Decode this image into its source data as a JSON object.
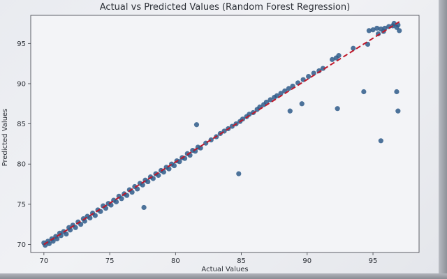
{
  "chart_data": {
    "type": "scatter",
    "title": "Actual vs Predicted Values (Random Forest Regression)",
    "xlabel": "Actual Values",
    "ylabel": "Predicted Values",
    "xlim": [
      69.0,
      98.5
    ],
    "ylim": [
      69.0,
      98.5
    ],
    "xticks": [
      70,
      75,
      80,
      85,
      90,
      95
    ],
    "yticks": [
      70,
      75,
      80,
      85,
      90,
      95
    ],
    "grid": false,
    "colors": {
      "points": "#2e5b8a",
      "reference_line": "#c0182a"
    },
    "reference_line": {
      "from": [
        70,
        70
      ],
      "to": [
        97,
        97.7
      ],
      "style": "dashed"
    },
    "outliers": [
      {
        "x": 94.3,
        "y": 89.0
      },
      {
        "x": 96.8,
        "y": 89.0
      },
      {
        "x": 96.9,
        "y": 86.6
      },
      {
        "x": 95.6,
        "y": 82.9
      },
      {
        "x": 92.3,
        "y": 86.9
      },
      {
        "x": 84.8,
        "y": 78.8
      },
      {
        "x": 77.6,
        "y": 74.6
      },
      {
        "x": 81.6,
        "y": 84.9
      },
      {
        "x": 89.6,
        "y": 87.5
      },
      {
        "x": 88.7,
        "y": 86.6
      },
      {
        "x": 91.9,
        "y": 93.0
      },
      {
        "x": 94.7,
        "y": 96.6
      }
    ],
    "series": [
      {
        "points_xy": [
          [
            70.0,
            70.2
          ],
          [
            70.1,
            69.9
          ],
          [
            70.3,
            70.4
          ],
          [
            70.4,
            70.1
          ],
          [
            70.6,
            70.7
          ],
          [
            70.7,
            70.4
          ],
          [
            70.9,
            71.0
          ],
          [
            71.0,
            70.7
          ],
          [
            71.2,
            71.4
          ],
          [
            71.3,
            71.1
          ],
          [
            71.5,
            71.6
          ],
          [
            71.7,
            71.3
          ],
          [
            71.9,
            72.1
          ],
          [
            72.0,
            71.8
          ],
          [
            72.2,
            72.4
          ],
          [
            72.4,
            72.1
          ],
          [
            72.6,
            72.8
          ],
          [
            72.8,
            72.5
          ],
          [
            73.0,
            73.2
          ],
          [
            73.1,
            72.9
          ],
          [
            73.3,
            73.5
          ],
          [
            73.5,
            73.3
          ],
          [
            73.7,
            73.9
          ],
          [
            73.9,
            73.6
          ],
          [
            74.1,
            74.3
          ],
          [
            74.3,
            74.1
          ],
          [
            74.5,
            74.8
          ],
          [
            74.7,
            74.5
          ],
          [
            74.9,
            75.1
          ],
          [
            75.1,
            74.9
          ],
          [
            75.3,
            75.5
          ],
          [
            75.5,
            75.3
          ],
          [
            75.7,
            76.0
          ],
          [
            75.9,
            75.7
          ],
          [
            76.1,
            76.3
          ],
          [
            76.3,
            76.1
          ],
          [
            76.5,
            76.8
          ],
          [
            76.7,
            76.5
          ],
          [
            76.9,
            77.2
          ],
          [
            77.1,
            76.9
          ],
          [
            77.3,
            77.6
          ],
          [
            77.5,
            77.4
          ],
          [
            77.7,
            78.0
          ],
          [
            77.9,
            77.8
          ],
          [
            78.1,
            78.4
          ],
          [
            78.3,
            78.2
          ],
          [
            78.5,
            78.8
          ],
          [
            78.7,
            78.6
          ],
          [
            78.9,
            79.2
          ],
          [
            79.1,
            79.0
          ],
          [
            79.3,
            79.6
          ],
          [
            79.5,
            79.4
          ],
          [
            79.7,
            80.0
          ],
          [
            79.9,
            79.8
          ],
          [
            80.1,
            80.4
          ],
          [
            80.3,
            80.3
          ],
          [
            80.5,
            80.8
          ],
          [
            80.7,
            80.7
          ],
          [
            80.9,
            81.3
          ],
          [
            81.1,
            81.1
          ],
          [
            81.3,
            81.7
          ],
          [
            81.5,
            81.6
          ],
          [
            81.7,
            82.1
          ],
          [
            81.9,
            82.0
          ],
          [
            82.3,
            82.6
          ],
          [
            82.7,
            83.0
          ],
          [
            83.1,
            83.4
          ],
          [
            83.4,
            83.8
          ],
          [
            83.7,
            84.1
          ],
          [
            84.0,
            84.4
          ],
          [
            84.3,
            84.7
          ],
          [
            84.6,
            85.0
          ],
          [
            84.9,
            85.3
          ],
          [
            85.1,
            85.6
          ],
          [
            85.4,
            85.9
          ],
          [
            85.6,
            86.2
          ],
          [
            85.9,
            86.4
          ],
          [
            86.2,
            86.8
          ],
          [
            86.4,
            87.1
          ],
          [
            86.7,
            87.4
          ],
          [
            86.9,
            87.7
          ],
          [
            87.2,
            88.0
          ],
          [
            87.5,
            88.3
          ],
          [
            87.7,
            88.5
          ],
          [
            88.0,
            88.8
          ],
          [
            88.3,
            89.1
          ],
          [
            88.6,
            89.4
          ],
          [
            88.9,
            89.7
          ],
          [
            89.3,
            90.1
          ],
          [
            89.7,
            90.5
          ],
          [
            90.1,
            90.9
          ],
          [
            90.5,
            91.3
          ],
          [
            90.9,
            91.6
          ],
          [
            91.2,
            91.9
          ],
          [
            92.2,
            93.2
          ],
          [
            92.4,
            93.5
          ],
          [
            93.5,
            94.4
          ],
          [
            94.6,
            94.9
          ],
          [
            95.0,
            96.7
          ],
          [
            95.3,
            96.9
          ],
          [
            95.6,
            96.8
          ],
          [
            95.9,
            96.9
          ],
          [
            96.2,
            97.1
          ],
          [
            96.5,
            97.2
          ],
          [
            96.8,
            97.0
          ],
          [
            97.0,
            96.6
          ],
          [
            96.6,
            97.5
          ],
          [
            95.8,
            96.5
          ],
          [
            96.9,
            97.3
          ],
          [
            95.4,
            96.2
          ]
        ]
      }
    ]
  }
}
